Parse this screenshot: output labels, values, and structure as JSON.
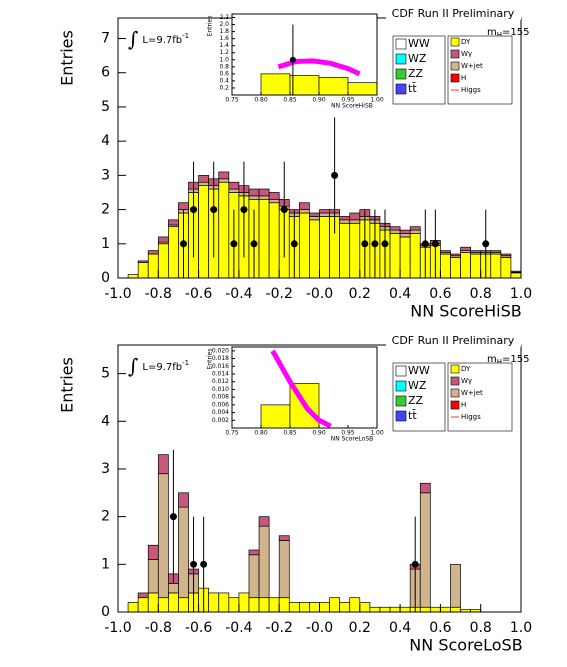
{
  "chart_data": [
    {
      "type": "histogram",
      "title": "CDF Run II Preliminary",
      "ylabel": "Entries",
      "xlabel": "NN ScoreHiSB",
      "lumi_label": [
        "∫",
        "L=9.7fb",
        "-1"
      ],
      "mass_label": [
        "m",
        "H",
        "=155"
      ],
      "xlim": [
        -1,
        1
      ],
      "ylim": [
        0,
        7.6
      ],
      "xticks": [
        {
          "value": -1,
          "label": "-1.0"
        },
        -0.8,
        -0.6,
        -0.4,
        -0.2,
        {
          "value": 0,
          "label": "-0.0"
        },
        0.2,
        0.4,
        0.6,
        0.8,
        {
          "value": 1,
          "label": "1.0"
        }
      ],
      "yticks": [
        0,
        1,
        2,
        3,
        4,
        5,
        6,
        7
      ],
      "bins": [
        -1,
        -0.95,
        -0.9,
        -0.85,
        -0.8,
        -0.75,
        -0.7,
        -0.65,
        -0.6,
        -0.55,
        -0.5,
        -0.45,
        -0.4,
        -0.35,
        -0.3,
        -0.25,
        -0.2,
        -0.15,
        -0.1,
        -0.05,
        0,
        0.05,
        0.1,
        0.15,
        0.2,
        0.25,
        0.3,
        0.35,
        0.4,
        0.45,
        0.5,
        0.55,
        0.6,
        0.65,
        0.7,
        0.75,
        0.8,
        0.85,
        0.9,
        0.95,
        1
      ],
      "series": [
        {
          "name": "DY",
          "color": "#ffff00",
          "values": [
            0,
            0.1,
            0.45,
            0.7,
            1.0,
            1.5,
            1.9,
            2.5,
            2.7,
            2.6,
            2.8,
            2.5,
            2.4,
            2.3,
            2.3,
            2.2,
            2.0,
            1.8,
            1.9,
            1.7,
            1.8,
            1.8,
            1.6,
            1.6,
            1.7,
            1.6,
            1.4,
            1.3,
            1.2,
            1.3,
            0.9,
            0.95,
            0.7,
            0.6,
            0.75,
            0.7,
            0.7,
            0.7,
            0.6,
            0.15
          ]
        },
        {
          "name": "W+jet",
          "color": "#d2b48c",
          "values": [
            0,
            0,
            0,
            0,
            0.05,
            0.05,
            0.1,
            0.1,
            0.1,
            0.1,
            0.1,
            0.1,
            0.1,
            0.1,
            0.1,
            0.1,
            0.1,
            0.1,
            0.1,
            0.1,
            0.1,
            0.1,
            0.1,
            0.1,
            0.1,
            0.1,
            0.1,
            0.1,
            0.1,
            0.1,
            0.05,
            0.05,
            0.05,
            0.05,
            0.05,
            0.05,
            0.05,
            0.05,
            0.05,
            0.02
          ]
        },
        {
          "name": "Wγ",
          "color": "#c8577c",
          "values": [
            0,
            0,
            0.05,
            0.1,
            0.15,
            0.15,
            0.2,
            0.2,
            0.2,
            0.2,
            0.2,
            0.2,
            0.2,
            0.2,
            0.2,
            0.2,
            0.2,
            0.1,
            0.2,
            0.1,
            0.1,
            0.1,
            0.1,
            0.2,
            0.2,
            0.1,
            0.1,
            0.1,
            0.1,
            0.1,
            0.05,
            0.1,
            0.05,
            0.05,
            0.1,
            0.05,
            0.05,
            0.05,
            0.05,
            0.03
          ]
        }
      ],
      "points": {
        "x": [
          -0.675,
          -0.625,
          -0.525,
          -0.425,
          -0.375,
          -0.325,
          -0.175,
          -0.125,
          0.075,
          0.225,
          0.275,
          0.325,
          0.525,
          0.575,
          0.825
        ],
        "values": [
          1,
          2,
          2,
          1,
          2,
          1,
          2,
          1,
          3,
          1,
          1,
          1,
          1,
          1,
          1
        ],
        "errors": [
          1,
          1.4,
          1.4,
          1,
          1.4,
          1,
          1.4,
          1,
          1.7,
          1,
          1,
          1,
          1,
          1,
          1
        ]
      },
      "legend": [
        {
          "name": "WW",
          "color": "#ffffff"
        },
        {
          "name": "WZ",
          "color": "#00ffff"
        },
        {
          "name": "ZZ",
          "color": "#33cc33"
        },
        {
          "name": "tt̄",
          "color": "#4444ff"
        },
        {
          "name": "DY",
          "color": "#ffff00"
        },
        {
          "name": "Wγ",
          "color": "#c8577c"
        },
        {
          "name": "W+jet",
          "color": "#d2b48c"
        },
        {
          "name": "H",
          "color": "#ff0000"
        },
        {
          "name": "Higgs",
          "color": "#ff3333",
          "style": "line"
        }
      ]
    },
    {
      "type": "histogram",
      "ylabel": "Entries",
      "xlabel": "NN ScoreHiSB",
      "xlim": [
        0.75,
        1
      ],
      "ylim": [
        0,
        2.3
      ],
      "xticks": [
        0.75,
        {
          "value": 0.8,
          "label": "0.80"
        },
        0.85,
        {
          "value": 0.9,
          "label": "0.90"
        },
        0.95,
        {
          "value": 1,
          "label": "1.00"
        }
      ],
      "yticks": [
        0.2,
        0.4,
        0.6,
        0.8,
        {
          "value": 1,
          "label": "1.0"
        },
        1.2,
        1.4,
        1.6,
        1.8,
        {
          "value": 2,
          "label": "2.0"
        },
        2.2
      ],
      "bins": [
        0.75,
        0.8,
        0.85,
        0.9,
        0.95,
        1
      ],
      "series": [
        {
          "name": "DY",
          "color": "#ffff00",
          "values": [
            0,
            0.6,
            0.55,
            0.5,
            0.35
          ]
        }
      ],
      "line": {
        "color": "#ff00ff",
        "x": [
          0.83,
          0.86,
          0.89,
          0.92,
          0.95,
          0.97
        ],
        "values": [
          0.8,
          0.95,
          0.97,
          0.9,
          0.75,
          0.6
        ]
      },
      "points": {
        "x": [
          0.855
        ],
        "values": [
          1
        ],
        "errors": [
          1
        ]
      }
    },
    {
      "type": "histogram",
      "title": "CDF Run II Preliminary",
      "ylabel": "Entries",
      "xlabel": "NN ScoreLoSB",
      "lumi_label": [
        "∫",
        "L=9.7fb",
        "-1"
      ],
      "mass_label": [
        "m",
        "H",
        "=155"
      ],
      "xlim": [
        -1,
        1
      ],
      "ylim": [
        0,
        5.6
      ],
      "xticks": [
        {
          "value": -1,
          "label": "-1.0"
        },
        -0.8,
        -0.6,
        -0.4,
        -0.2,
        {
          "value": 0,
          "label": "-0.0"
        },
        0.2,
        0.4,
        0.6,
        0.8,
        {
          "value": 1,
          "label": "1.0"
        }
      ],
      "yticks": [
        0,
        1,
        2,
        3,
        4,
        5
      ],
      "bins": [
        -1,
        -0.95,
        -0.9,
        -0.85,
        -0.8,
        -0.75,
        -0.7,
        -0.65,
        -0.6,
        -0.55,
        -0.5,
        -0.45,
        -0.4,
        -0.35,
        -0.3,
        -0.25,
        -0.2,
        -0.15,
        -0.1,
        -0.05,
        0,
        0.05,
        0.1,
        0.15,
        0.2,
        0.25,
        0.3,
        0.35,
        0.4,
        0.45,
        0.5,
        0.55,
        0.6,
        0.65,
        0.7,
        0.75,
        0.8,
        0.85,
        0.9,
        0.95,
        1
      ],
      "series": [
        {
          "name": "DY",
          "color": "#ffff00",
          "values": [
            0,
            0.2,
            0.3,
            0.4,
            0.3,
            0.4,
            0.3,
            0.4,
            0.5,
            0.4,
            0.4,
            0.3,
            0.4,
            0.3,
            0.3,
            0.3,
            0.3,
            0.2,
            0.2,
            0.2,
            0.2,
            0.3,
            0.2,
            0.3,
            0.2,
            0.1,
            0.1,
            0.1,
            0.1,
            0.1,
            0.1,
            0.1,
            0.1,
            0.1,
            0.05,
            0.05,
            0,
            0,
            0,
            0
          ]
        },
        {
          "name": "W+jet",
          "color": "#d2b48c",
          "values": [
            0,
            0,
            0,
            0.7,
            2.6,
            0.2,
            1.9,
            0.4,
            0,
            0,
            0,
            0,
            0,
            0.9,
            1.5,
            0,
            1.2,
            0,
            0,
            0,
            0,
            0,
            0,
            0,
            0,
            0,
            0,
            0,
            0,
            0.8,
            2.4,
            0,
            0,
            0.9,
            0,
            0,
            0,
            0,
            0,
            0
          ]
        },
        {
          "name": "Wγ",
          "color": "#c8577c",
          "values": [
            0,
            0,
            0.1,
            0.3,
            0.4,
            0.2,
            0.3,
            0.1,
            0,
            0,
            0,
            0,
            0,
            0.1,
            0.2,
            0,
            0.1,
            0,
            0,
            0,
            0,
            0,
            0,
            0,
            0,
            0,
            0,
            0,
            0,
            0.1,
            0.2,
            0,
            0,
            0,
            0,
            0,
            0,
            0,
            0,
            0
          ]
        }
      ],
      "points": {
        "x": [
          -0.725,
          -0.625,
          -0.575,
          0.475
        ],
        "values": [
          2,
          1,
          1,
          1
        ],
        "errors": [
          1.4,
          1,
          1,
          1
        ]
      },
      "legend": [
        {
          "name": "WW",
          "color": "#ffffff"
        },
        {
          "name": "WZ",
          "color": "#00ffff"
        },
        {
          "name": "ZZ",
          "color": "#33cc33"
        },
        {
          "name": "tt̄",
          "color": "#4444ff"
        },
        {
          "name": "DY",
          "color": "#ffff00"
        },
        {
          "name": "Wγ",
          "color": "#c8577c"
        },
        {
          "name": "W+jet",
          "color": "#d2b48c"
        },
        {
          "name": "H",
          "color": "#ff0000"
        },
        {
          "name": "Higgs",
          "color": "#ff3333",
          "style": "line"
        }
      ]
    },
    {
      "type": "histogram",
      "ylabel": "Entries",
      "xlabel": "NN ScoreLoSB",
      "xlim": [
        0.75,
        1
      ],
      "ylim": [
        0,
        0.021
      ],
      "xticks": [
        0.75,
        {
          "value": 0.8,
          "label": "0.80"
        },
        0.85,
        {
          "value": 0.9,
          "label": "0.90"
        },
        0.95,
        {
          "value": 1,
          "label": "1.00"
        }
      ],
      "yticks": [
        0.002,
        0.004,
        0.006,
        0.008,
        {
          "value": 0.01,
          "label": "0.010"
        },
        0.012,
        0.014,
        0.016,
        0.018,
        {
          "value": 0.02,
          "label": "0.020"
        }
      ],
      "bins": [
        0.75,
        0.8,
        0.85,
        0.9,
        0.95,
        1
      ],
      "series": [
        {
          "name": "DY",
          "color": "#ffff00",
          "values": [
            0,
            0.006,
            0.0115,
            0,
            0
          ]
        }
      ],
      "line": {
        "color": "#ff00ff",
        "x": [
          0.82,
          0.85,
          0.88,
          0.9,
          0.92
        ],
        "values": [
          0.02,
          0.012,
          0.005,
          0.002,
          0.0005
        ]
      }
    }
  ]
}
